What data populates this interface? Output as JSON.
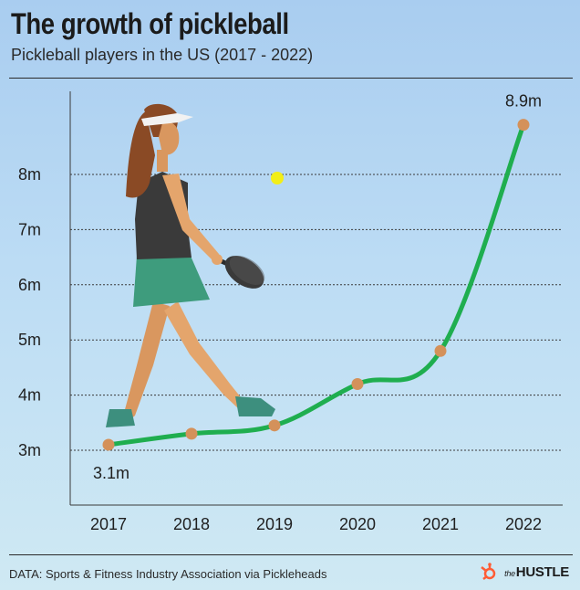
{
  "header": {
    "title": "The growth of pickleball",
    "subtitle": "Pickleball players in the US (2017 - 2022)"
  },
  "footer": {
    "source": "DATA: Sports & Fitness Industry Association via Pickleheads",
    "brand_small": "the",
    "brand_main": "HUSTLE",
    "logo_icon": "hubspot-sprocket-icon"
  },
  "colors": {
    "line": "#1fae4f",
    "marker": "#d4915a",
    "grid": "#3a3a3a",
    "ball": "#f2ee18"
  },
  "chart_data": {
    "type": "line",
    "title": "The growth of pickleball",
    "subtitle": "Pickleball players in the US (2017 - 2022)",
    "x": [
      "2017",
      "2018",
      "2019",
      "2020",
      "2021",
      "2022"
    ],
    "series": [
      {
        "values": [
          3.1,
          3.3,
          3.45,
          4.2,
          4.8,
          8.9
        ]
      }
    ],
    "ytick_labels": [
      "3m",
      "4m",
      "5m",
      "6m",
      "7m",
      "8m"
    ],
    "yticks": [
      3,
      4,
      5,
      6,
      7,
      8
    ],
    "ylim": [
      2.0,
      9.8
    ],
    "data_labels": [
      {
        "index": 0,
        "text": "3.1m"
      },
      {
        "index": 5,
        "text": "8.9m"
      }
    ],
    "grid": "horizontal dotted",
    "xlabel": "",
    "ylabel": ""
  }
}
